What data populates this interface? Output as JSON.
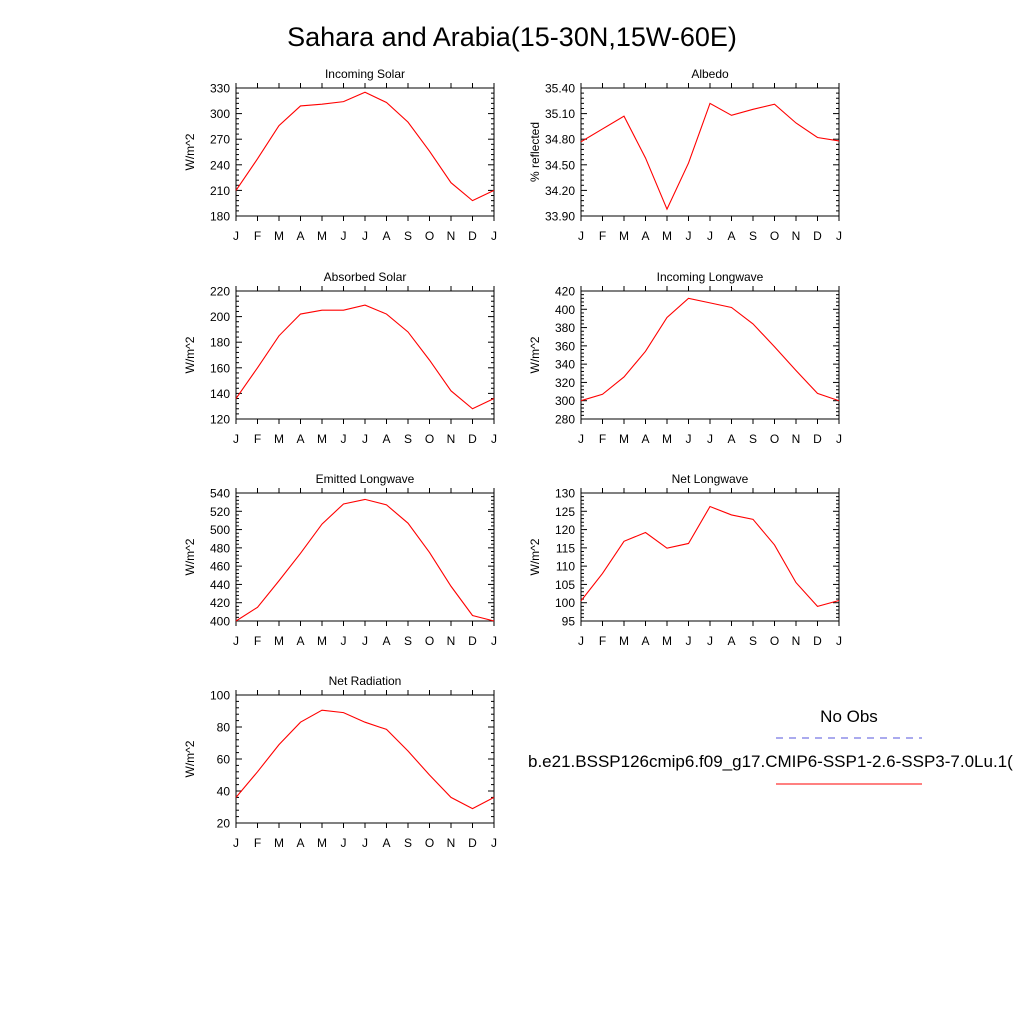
{
  "page_title": "Sahara and Arabia(15-30N,15W-60E)",
  "month_labels": [
    "J",
    "F",
    "M",
    "A",
    "M",
    "J",
    "J",
    "A",
    "S",
    "O",
    "N",
    "D",
    "J"
  ],
  "series_color": "#ff0000",
  "obs_color": "#5555dd",
  "legend": {
    "obs_label": "No Obs",
    "model_label": "b.e21.BSSP126cmip6.f09_g17.CMIP6-SSP1-2.6-SSP3-7.0Lu.1("
  },
  "chart_data": [
    {
      "type": "line",
      "title": "Incoming Solar",
      "ylabel": "W/m^2",
      "ylim": [
        180,
        330
      ],
      "yticks": [
        "180",
        "210",
        "240",
        "270",
        "300",
        "330"
      ],
      "x": [
        "J",
        "F",
        "M",
        "A",
        "M",
        "J",
        "J",
        "A",
        "S",
        "O",
        "N",
        "D",
        "J"
      ],
      "values": [
        210,
        247,
        286,
        309,
        311,
        314,
        325,
        313,
        290,
        256,
        219,
        198,
        210
      ]
    },
    {
      "type": "line",
      "title": "Albedo",
      "ylabel": "% reflected",
      "ylim": [
        33.9,
        35.4
      ],
      "yticks": [
        "33.90",
        "34.20",
        "34.50",
        "34.80",
        "35.10",
        "35.40"
      ],
      "x": [
        "J",
        "F",
        "M",
        "A",
        "M",
        "J",
        "J",
        "A",
        "S",
        "O",
        "N",
        "D",
        "J"
      ],
      "values": [
        34.77,
        34.92,
        35.07,
        34.58,
        33.98,
        34.52,
        35.22,
        35.08,
        35.15,
        35.21,
        34.99,
        34.82,
        34.78
      ]
    },
    {
      "type": "line",
      "title": "Absorbed Solar",
      "ylabel": "W/m^2",
      "ylim": [
        120,
        220
      ],
      "yticks": [
        "120",
        "140",
        "160",
        "180",
        "200",
        "220"
      ],
      "x": [
        "J",
        "F",
        "M",
        "A",
        "M",
        "J",
        "J",
        "A",
        "S",
        "O",
        "N",
        "D",
        "J"
      ],
      "values": [
        136,
        160,
        185,
        202,
        205,
        205,
        209,
        202,
        188,
        166,
        142,
        128,
        136
      ]
    },
    {
      "type": "line",
      "title": "Incoming Longwave",
      "ylabel": "W/m^2",
      "ylim": [
        280,
        420
      ],
      "yticks": [
        "280",
        "300",
        "320",
        "340",
        "360",
        "380",
        "400",
        "420"
      ],
      "x": [
        "J",
        "F",
        "M",
        "A",
        "M",
        "J",
        "J",
        "A",
        "S",
        "O",
        "N",
        "D",
        "J"
      ],
      "values": [
        300,
        307,
        326,
        354,
        391,
        412,
        407,
        402,
        384,
        359,
        333,
        308,
        300
      ]
    },
    {
      "type": "line",
      "title": "Emitted Longwave",
      "ylabel": "W/m^2",
      "ylim": [
        400,
        540
      ],
      "yticks": [
        "400",
        "420",
        "440",
        "460",
        "480",
        "500",
        "520",
        "540"
      ],
      "x": [
        "J",
        "F",
        "M",
        "A",
        "M",
        "J",
        "J",
        "A",
        "S",
        "O",
        "N",
        "D",
        "J"
      ],
      "values": [
        400,
        415,
        444,
        474,
        506,
        528,
        533,
        527,
        507,
        475,
        438,
        406,
        400
      ]
    },
    {
      "type": "line",
      "title": "Net Longwave",
      "ylabel": "W/m^2",
      "ylim": [
        95,
        130
      ],
      "yticks": [
        "95",
        "100",
        "105",
        "110",
        "115",
        "120",
        "125",
        "130"
      ],
      "x": [
        "J",
        "F",
        "M",
        "A",
        "M",
        "J",
        "J",
        "A",
        "S",
        "O",
        "N",
        "D",
        "J"
      ],
      "values": [
        100.5,
        108,
        116.8,
        119.2,
        114.9,
        116.2,
        126.3,
        124,
        122.8,
        115.8,
        105.5,
        99,
        100.6
      ]
    },
    {
      "type": "line",
      "title": "Net Radiation",
      "ylabel": "W/m^2",
      "ylim": [
        20,
        100
      ],
      "yticks": [
        "20",
        "40",
        "60",
        "80",
        "100"
      ],
      "x": [
        "J",
        "F",
        "M",
        "A",
        "M",
        "J",
        "J",
        "A",
        "S",
        "O",
        "N",
        "D",
        "J"
      ],
      "values": [
        36,
        52,
        69,
        83,
        90.5,
        89,
        83,
        78.5,
        65,
        50,
        36,
        29,
        36
      ]
    }
  ]
}
